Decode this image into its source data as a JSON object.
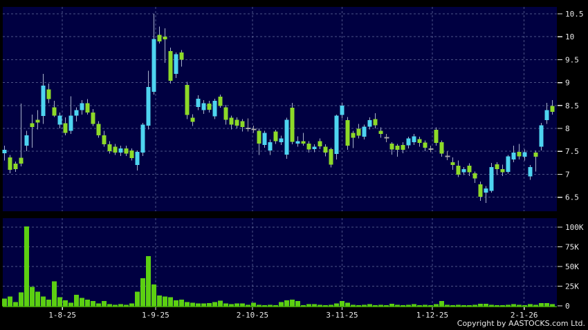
{
  "meta": {
    "page_bg": "#000000",
    "panel_bg": "#000041",
    "grid_color": "#9aa6cc",
    "wick_color": "#a7b2cc",
    "up_color": "#4ed4f0",
    "down_color": "#8dd928",
    "doji_color": "#a8a8a8",
    "volume_color": "#5ccf12",
    "volume_baseline_color": "#3d9a08",
    "label_color": "#e9e9e9"
  },
  "copyright": "Copyright by AASTOCKS.com Ltd.",
  "axes": {
    "price_ticks": [
      {
        "value": 10.5,
        "label": "10.5"
      },
      {
        "value": 10,
        "label": "10"
      },
      {
        "value": 9.5,
        "label": "9.5"
      },
      {
        "value": 9,
        "label": "9"
      },
      {
        "value": 8.5,
        "label": "8.5"
      },
      {
        "value": 8,
        "label": "8"
      },
      {
        "value": 7.5,
        "label": "7.5"
      },
      {
        "value": 7,
        "label": "7"
      },
      {
        "value": 6.5,
        "label": "6.5"
      }
    ],
    "volume_ticks": [
      {
        "value": 100,
        "label": "100K"
      },
      {
        "value": 75,
        "label": "75K"
      },
      {
        "value": 50,
        "label": "50K"
      },
      {
        "value": 25,
        "label": "25K"
      },
      {
        "value": 0,
        "label": "0"
      }
    ],
    "x_labels": [
      {
        "label": "1-8-25",
        "index": 10.45
      },
      {
        "label": "1-9-25",
        "index": 27.3
      },
      {
        "label": "2-10-25",
        "index": 44.8
      },
      {
        "label": "3-11-25",
        "index": 61.0
      },
      {
        "label": "1-12-25",
        "index": 77.3
      },
      {
        "label": "2-1-26",
        "index": 93.9
      }
    ]
  },
  "chart_data": {
    "type": "candlestick",
    "panels": [
      "price",
      "volume"
    ],
    "price_ylim": [
      6.3,
      10.6
    ],
    "volume_ylim": [
      0,
      110
    ],
    "volume_unit": "K",
    "up_means": "close_above_open_cyan",
    "down_means": "close_below_open_green",
    "columns": [
      "open",
      "high",
      "low",
      "close",
      "volume_k"
    ],
    "rows": [
      [
        7.46,
        7.62,
        7.3,
        7.53,
        9
      ],
      [
        7.37,
        7.42,
        7.02,
        7.1,
        12
      ],
      [
        7.23,
        7.28,
        7.05,
        7.11,
        5
      ],
      [
        7.36,
        8.54,
        7.17,
        7.23,
        17
      ],
      [
        7.62,
        7.95,
        7.5,
        7.85,
        101
      ],
      [
        8.11,
        8.3,
        7.58,
        8.03,
        24
      ],
      [
        8.19,
        8.4,
        7.98,
        8.13,
        18
      ],
      [
        8.27,
        9.19,
        8.1,
        8.93,
        12
      ],
      [
        8.85,
        8.98,
        8.55,
        8.64,
        8
      ],
      [
        8.46,
        8.6,
        8.25,
        8.28,
        31
      ],
      [
        8.08,
        8.35,
        8.0,
        8.28,
        11
      ],
      [
        8.11,
        8.24,
        7.85,
        7.9,
        7
      ],
      [
        7.95,
        8.7,
        7.88,
        8.28,
        4
      ],
      [
        8.28,
        8.46,
        8.15,
        8.4,
        14
      ],
      [
        8.4,
        8.62,
        8.3,
        8.55,
        10
      ],
      [
        8.55,
        8.64,
        8.3,
        8.35,
        8
      ],
      [
        8.35,
        8.42,
        8.05,
        8.1,
        6
      ],
      [
        8.1,
        8.16,
        7.8,
        7.85,
        3
      ],
      [
        7.85,
        7.95,
        7.6,
        7.65,
        6
      ],
      [
        7.65,
        7.72,
        7.45,
        7.5,
        2
      ],
      [
        7.6,
        7.66,
        7.42,
        7.47,
        1.5
      ],
      [
        7.47,
        7.62,
        7.4,
        7.56,
        2
      ],
      [
        7.56,
        7.62,
        7.4,
        7.45,
        1.5
      ],
      [
        7.52,
        7.56,
        7.3,
        7.35,
        3
      ],
      [
        7.2,
        7.52,
        7.08,
        7.49,
        18
      ],
      [
        7.47,
        8.12,
        7.4,
        8.08,
        35
      ],
      [
        8.06,
        9.26,
        7.98,
        8.9,
        63
      ],
      [
        8.8,
        10.5,
        8.74,
        9.95,
        27
      ],
      [
        10.04,
        10.22,
        9.85,
        9.9,
        13
      ],
      [
        10.0,
        10.18,
        9.43,
        9.94,
        12
      ],
      [
        9.69,
        9.76,
        8.98,
        9.04,
        11
      ],
      [
        9.19,
        9.66,
        9.1,
        9.62,
        7
      ],
      [
        9.66,
        9.71,
        9.35,
        9.5,
        8
      ],
      [
        8.95,
        9.02,
        8.2,
        8.29,
        5
      ],
      [
        8.23,
        8.31,
        8.05,
        8.14,
        4
      ],
      [
        8.47,
        8.72,
        8.4,
        8.65,
        3
      ],
      [
        8.4,
        8.62,
        8.32,
        8.55,
        3
      ],
      [
        8.54,
        8.6,
        8.35,
        8.41,
        3.5
      ],
      [
        8.26,
        8.65,
        8.2,
        8.6,
        5
      ],
      [
        8.69,
        8.74,
        8.45,
        8.49,
        6.5
      ],
      [
        8.46,
        8.51,
        8.08,
        8.19,
        3
      ],
      [
        8.23,
        8.28,
        7.98,
        8.08,
        2
      ],
      [
        8.19,
        8.24,
        8.0,
        8.06,
        3
      ],
      [
        8.16,
        8.2,
        7.93,
        8.03,
        3
      ],
      [
        7.99,
        8.22,
        7.93,
        8.0,
        1.5
      ],
      [
        7.99,
        8.06,
        7.9,
        7.98,
        4
      ],
      [
        7.95,
        8.0,
        7.42,
        7.67,
        1.5
      ],
      [
        7.64,
        7.95,
        7.58,
        7.9,
        1
      ],
      [
        7.52,
        7.76,
        7.42,
        7.7,
        1.5
      ],
      [
        7.93,
        7.97,
        7.66,
        7.72,
        1
      ],
      [
        7.7,
        7.84,
        7.64,
        7.78,
        5
      ],
      [
        7.43,
        8.23,
        7.34,
        8.19,
        7
      ],
      [
        8.45,
        8.56,
        7.65,
        7.71,
        8
      ],
      [
        7.67,
        7.83,
        7.6,
        7.72,
        6
      ],
      [
        7.72,
        7.9,
        7.62,
        7.67,
        1
      ],
      [
        7.67,
        7.72,
        7.47,
        7.54,
        2
      ],
      [
        7.55,
        7.65,
        7.48,
        7.6,
        2
      ],
      [
        7.72,
        7.78,
        7.55,
        7.61,
        1.5
      ],
      [
        7.6,
        7.65,
        7.39,
        7.47,
        1
      ],
      [
        7.55,
        7.58,
        7.15,
        7.21,
        1.5
      ],
      [
        7.44,
        8.3,
        7.32,
        8.28,
        3
      ],
      [
        8.29,
        8.56,
        8.22,
        8.5,
        6
      ],
      [
        8.18,
        8.25,
        7.53,
        7.62,
        4
      ],
      [
        7.9,
        7.95,
        7.57,
        7.8,
        1.5
      ],
      [
        7.99,
        8.1,
        7.78,
        7.84,
        1
      ],
      [
        7.82,
        8.08,
        7.76,
        8.04,
        1.5
      ],
      [
        8.04,
        8.24,
        7.98,
        8.18,
        2
      ],
      [
        8.2,
        8.33,
        8.0,
        8.07,
        1
      ],
      [
        7.95,
        8.02,
        7.8,
        7.88,
        1.5
      ],
      [
        7.81,
        7.88,
        7.7,
        7.8,
        1
      ],
      [
        7.67,
        7.7,
        7.43,
        7.54,
        2.8
      ],
      [
        7.62,
        7.66,
        7.38,
        7.53,
        1.5
      ],
      [
        7.64,
        7.7,
        7.46,
        7.53,
        1
      ],
      [
        7.63,
        7.82,
        7.56,
        7.78,
        1.5
      ],
      [
        7.7,
        7.88,
        7.64,
        7.83,
        2
      ],
      [
        7.77,
        7.82,
        7.6,
        7.68,
        1
      ],
      [
        7.69,
        7.74,
        7.5,
        7.58,
        1.5
      ],
      [
        7.56,
        7.62,
        7.48,
        7.55,
        1
      ],
      [
        7.97,
        8.02,
        7.62,
        7.68,
        2
      ],
      [
        7.7,
        7.74,
        7.38,
        7.45,
        6
      ],
      [
        7.4,
        7.5,
        7.31,
        7.39,
        1.5
      ],
      [
        7.26,
        7.37,
        7.1,
        7.2,
        1
      ],
      [
        7.19,
        7.3,
        6.94,
        6.99,
        1.5
      ],
      [
        7.04,
        7.16,
        6.98,
        7.11,
        0.8
      ],
      [
        7.19,
        7.24,
        6.96,
        7.04,
        1
      ],
      [
        7.02,
        7.06,
        6.81,
        6.91,
        1.5
      ],
      [
        6.78,
        6.84,
        6.42,
        6.51,
        2.8
      ],
      [
        6.6,
        6.74,
        6.37,
        6.69,
        2.8
      ],
      [
        6.64,
        7.25,
        6.6,
        7.16,
        1.5
      ],
      [
        7.22,
        7.26,
        6.98,
        7.11,
        1
      ],
      [
        7.11,
        7.21,
        6.96,
        7.04,
        0.8
      ],
      [
        7.05,
        7.42,
        7.01,
        7.39,
        1.5
      ],
      [
        7.32,
        7.62,
        7.26,
        7.47,
        2.3
      ],
      [
        7.49,
        7.66,
        7.32,
        7.39,
        1.5
      ],
      [
        7.38,
        7.54,
        7.3,
        7.48,
        1
      ],
      [
        6.95,
        7.2,
        6.88,
        7.16,
        2
      ],
      [
        7.47,
        7.52,
        7.06,
        7.38,
        1.5
      ],
      [
        7.6,
        8.12,
        7.52,
        8.07,
        3.5
      ],
      [
        8.18,
        8.56,
        8.1,
        8.4,
        3.5
      ],
      [
        8.49,
        8.62,
        8.3,
        8.36,
        2.3
      ]
    ]
  }
}
